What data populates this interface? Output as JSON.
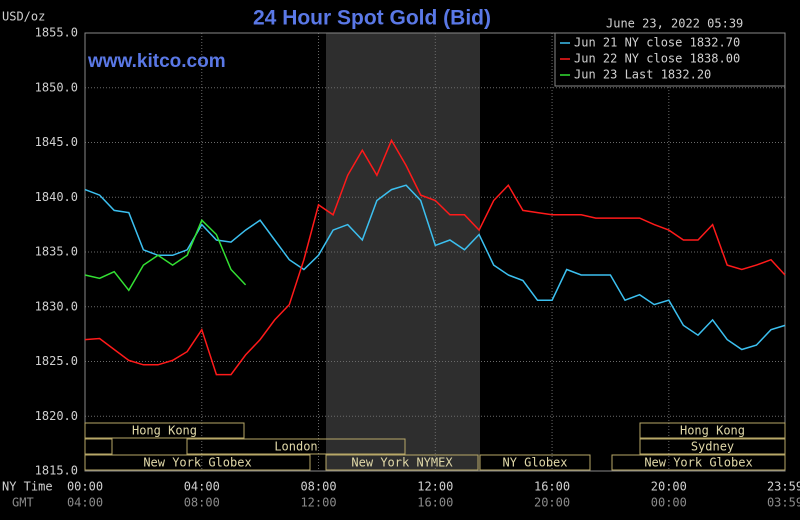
{
  "chart_data": {
    "type": "line",
    "title": "24 Hour Spot Gold (Bid)",
    "unit_label": "USD/oz",
    "website": "www.kitco.com",
    "timestamp": "June 23, 2022 05:39",
    "x_axis_label": "NY Time",
    "x2_axis_label": "GMT",
    "x": [
      0,
      0.5,
      1,
      1.5,
      2,
      2.5,
      3,
      3.5,
      4,
      4.5,
      5,
      5.5,
      6,
      6.5,
      7,
      7.5,
      8,
      8.5,
      9,
      9.5,
      10,
      10.5,
      11,
      11.5,
      12,
      12.5,
      13,
      13.5,
      14,
      14.5,
      15,
      15.5,
      16,
      16.5,
      17,
      17.5,
      18,
      18.5,
      19,
      19.5,
      20,
      20.5,
      21,
      21.5,
      22,
      22.5,
      23,
      23.5,
      23.98
    ],
    "series": [
      {
        "name": "Jun 21 NY close 1832.70",
        "color": "#3cc0f0",
        "values": [
          1840.7,
          1840.2,
          1838.8,
          1838.6,
          1835.2,
          1834.7,
          1834.7,
          1835.2,
          1837.5,
          1836.1,
          1835.9,
          1837.0,
          1837.9,
          1836.1,
          1834.3,
          1833.4,
          1834.7,
          1837.0,
          1837.5,
          1836.1,
          1839.7,
          1840.7,
          1841.1,
          1839.7,
          1835.6,
          1836.1,
          1835.2,
          1836.6,
          1833.8,
          1832.9,
          1832.4,
          1830.6,
          1830.6,
          1833.4,
          1832.9,
          1832.9,
          1832.9,
          1830.6,
          1831.1,
          1830.2,
          1830.6,
          1828.3,
          1827.4,
          1828.8,
          1827.0,
          1826.1,
          1826.5,
          1827.9,
          1828.3
        ]
      },
      {
        "name": "Jun 22 NY close 1838.00",
        "color": "#ff1a1a",
        "values": [
          1827.0,
          1827.1,
          1826.1,
          1825.1,
          1824.7,
          1824.7,
          1825.1,
          1825.9,
          1827.9,
          1823.8,
          1823.8,
          1825.6,
          1827.0,
          1828.8,
          1830.2,
          1834.3,
          1839.3,
          1838.4,
          1842.0,
          1844.3,
          1842.0,
          1845.2,
          1842.9,
          1840.2,
          1839.7,
          1838.4,
          1838.4,
          1837.0,
          1839.7,
          1841.1,
          1838.8,
          1838.6,
          1838.4,
          1838.4,
          1838.4,
          1838.1,
          1838.1,
          1838.1,
          1838.1,
          1837.5,
          1837.0,
          1836.1,
          1836.1,
          1837.5,
          1833.8,
          1833.4,
          1833.8,
          1834.3,
          1832.9
        ]
      },
      {
        "name": "Jun 23 Last 1832.20",
        "color": "#33e033",
        "values": [
          1832.9,
          1832.6,
          1833.2,
          1831.5,
          1833.8,
          1834.7,
          1833.8,
          1834.7,
          1837.9,
          1836.6,
          1833.4,
          1832.0,
          null,
          null,
          null,
          null,
          null,
          null,
          null,
          null,
          null,
          null,
          null,
          null,
          null,
          null,
          null,
          null,
          null,
          null,
          null,
          null,
          null,
          null,
          null,
          null,
          null,
          null,
          null,
          null,
          null,
          null,
          null,
          null,
          null,
          null,
          null,
          null,
          null
        ]
      }
    ],
    "xlim": [
      0,
      23.98
    ],
    "xticks": [
      {
        "value": 0,
        "label": "00:00"
      },
      {
        "value": 4,
        "label": "04:00"
      },
      {
        "value": 8,
        "label": "08:00"
      },
      {
        "value": 12,
        "label": "12:00"
      },
      {
        "value": 16,
        "label": "16:00"
      },
      {
        "value": 20,
        "label": "20:00"
      },
      {
        "value": 23.98,
        "label": "23:59"
      }
    ],
    "gmt_tick_labels": [
      "04:00",
      "08:00",
      "12:00",
      "16:00",
      "20:00",
      "00:00",
      "03:59"
    ],
    "ylim": [
      1815,
      1855
    ],
    "yticks": [
      {
        "value": 1815,
        "label": "1815.0"
      },
      {
        "value": 1820,
        "label": "1820.0"
      },
      {
        "value": 1825,
        "label": "1825.0"
      },
      {
        "value": 1830,
        "label": "1830.0"
      },
      {
        "value": 1835,
        "label": "1835.0"
      },
      {
        "value": 1840,
        "label": "1840.0"
      },
      {
        "value": 1845,
        "label": "1845.0"
      },
      {
        "value": 1850,
        "label": "1850.0"
      },
      {
        "value": 1855,
        "label": "1855.0"
      }
    ],
    "grid": true,
    "legend": "top-right",
    "sessions": [
      "Hong Kong",
      "London",
      "New York Globex",
      "New York NYMEX",
      "NY Globex",
      "Hong Kong",
      "Sydney",
      "New York Globex"
    ]
  }
}
